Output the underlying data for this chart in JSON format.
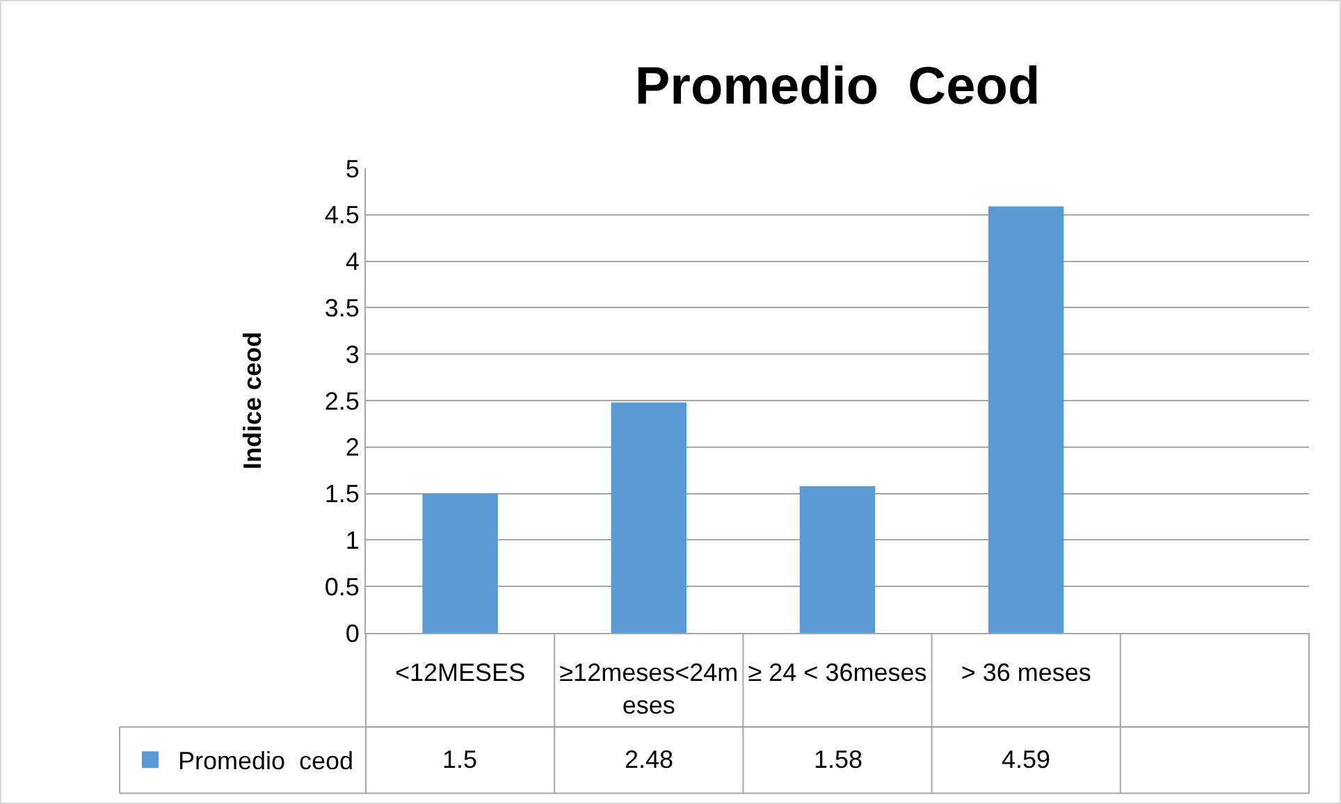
{
  "chart_data": {
    "type": "bar",
    "title": "Promedio  Ceod",
    "ylabel": "Indice ceod",
    "categories": [
      "<12MESES",
      "≥12meses<24meses",
      "≥ 24 < 36meses",
      "> 36 meses",
      null
    ],
    "series": [
      {
        "name": "Promedio  ceod",
        "color": "#5b9bd5",
        "values": [
          1.5,
          2.48,
          1.58,
          4.59,
          null
        ]
      }
    ],
    "ylim": [
      0,
      5
    ],
    "yticks": [
      0,
      0.5,
      1,
      1.5,
      2,
      2.5,
      3,
      3.5,
      4,
      4.5,
      5
    ],
    "grid": "y",
    "legend": "bottom",
    "data_labels": true
  }
}
